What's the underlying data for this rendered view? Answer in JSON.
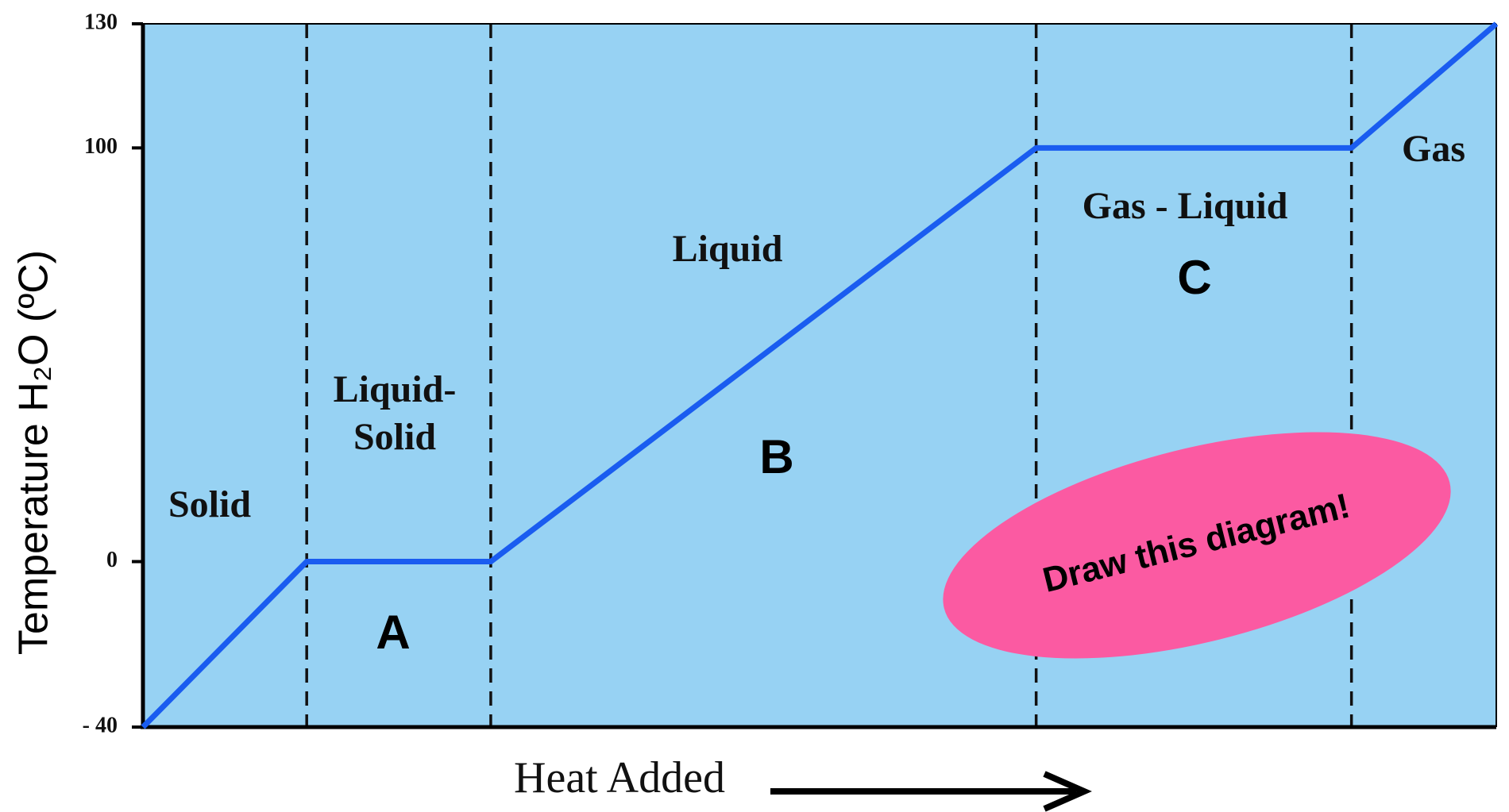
{
  "chart_data": {
    "type": "line",
    "y_label": "Temperature H₂O (ºC)",
    "x_label": "Heat Added",
    "x": [
      0,
      12.1,
      25.7,
      66.0,
      89.3,
      100
    ],
    "xlim": [
      0,
      100
    ],
    "series": [
      {
        "color": "#1a5cf0",
        "values": [
          -40,
          0,
          0,
          100,
          100,
          130
        ]
      }
    ],
    "ylim": [
      -40,
      130
    ],
    "yticks": [
      {
        "value": -40,
        "label": "- 40"
      },
      0,
      100,
      130
    ],
    "annotations": [
      {
        "lines": [
          "Solid"
        ]
      },
      {
        "lines": [
          "Liquid-",
          "Solid"
        ]
      },
      {
        "lines": [
          "Liquid"
        ]
      },
      {
        "lines": [
          "Gas - Liquid"
        ]
      },
      {
        "lines": [
          "Gas"
        ]
      },
      {
        "lines": [
          "A"
        ]
      },
      {
        "lines": [
          "B"
        ]
      },
      {
        "lines": [
          "C"
        ]
      },
      {
        "lines": [
          "Draw this diagram!"
        ]
      }
    ]
  }
}
